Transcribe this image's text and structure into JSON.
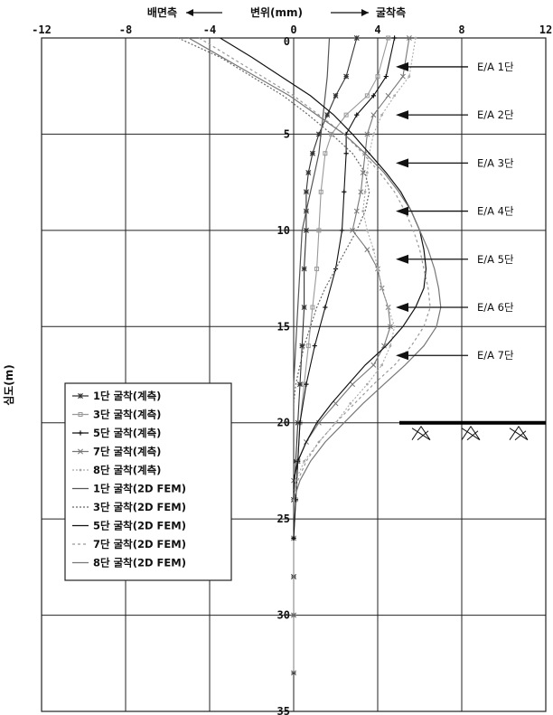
{
  "header": {
    "left_label": "배면측",
    "center_label": "변위(mm)",
    "right_label": "굴착측"
  },
  "ylabel": "심도(m)",
  "excavation_depth_m": 20,
  "anchors": [
    {
      "label": "E/A 1단",
      "depth": 1.5
    },
    {
      "label": "E/A 2단",
      "depth": 4.0
    },
    {
      "label": "E/A 3단",
      "depth": 6.5
    },
    {
      "label": "E/A 4단",
      "depth": 9.0
    },
    {
      "label": "E/A 5단",
      "depth": 11.5
    },
    {
      "label": "E/A 6단",
      "depth": 14.0
    },
    {
      "label": "E/A 7단",
      "depth": 16.5
    }
  ],
  "chart_data": {
    "type": "line",
    "xlabel": "변위(mm)",
    "ylabel": "심도(m)",
    "xlim": [
      -12,
      12
    ],
    "ylim": [
      0,
      35
    ],
    "y_inverted": true,
    "x_ticks": [
      "-12",
      "-8",
      "-4",
      "0",
      "4",
      "8",
      "12"
    ],
    "y_ticks": [
      "0",
      "5",
      "10",
      "15",
      "20",
      "25",
      "30",
      "35"
    ],
    "grid": true,
    "legend_position": "left-middle",
    "series": [
      {
        "name": "1단 굴착(계측)",
        "color": "#333333",
        "dash": "",
        "marker": "star",
        "points": [
          [
            3.0,
            0
          ],
          [
            2.5,
            2
          ],
          [
            2.0,
            3
          ],
          [
            1.6,
            4
          ],
          [
            1.2,
            5
          ],
          [
            0.9,
            6
          ],
          [
            0.7,
            7
          ],
          [
            0.6,
            8
          ],
          [
            0.6,
            9
          ],
          [
            0.6,
            10
          ],
          [
            0.5,
            12
          ],
          [
            0.5,
            14
          ],
          [
            0.4,
            16
          ],
          [
            0.3,
            18
          ],
          [
            0.2,
            20
          ],
          [
            0.1,
            22
          ],
          [
            0.0,
            24
          ],
          [
            0.0,
            26
          ],
          [
            0.0,
            28
          ],
          [
            0.0,
            30
          ],
          [
            0.0,
            33
          ]
        ]
      },
      {
        "name": "3단 굴착(계측)",
        "color": "#999999",
        "dash": "",
        "marker": "square",
        "points": [
          [
            4.5,
            0
          ],
          [
            4.0,
            2
          ],
          [
            3.5,
            3
          ],
          [
            2.5,
            4
          ],
          [
            1.8,
            5
          ],
          [
            1.5,
            6
          ],
          [
            1.3,
            8
          ],
          [
            1.2,
            10
          ],
          [
            1.1,
            12
          ],
          [
            0.9,
            14
          ],
          [
            0.7,
            16
          ],
          [
            0.5,
            18
          ],
          [
            0.3,
            20
          ],
          [
            0.2,
            22
          ],
          [
            0.1,
            24
          ],
          [
            0.0,
            26
          ],
          [
            0.0,
            30
          ],
          [
            0.0,
            33
          ]
        ]
      },
      {
        "name": "5단 굴착(계측)",
        "color": "#111111",
        "dash": "",
        "marker": "plus",
        "points": [
          [
            4.8,
            0
          ],
          [
            4.4,
            2
          ],
          [
            3.8,
            3
          ],
          [
            3.0,
            4
          ],
          [
            2.5,
            5
          ],
          [
            2.5,
            6
          ],
          [
            2.4,
            8
          ],
          [
            2.3,
            10
          ],
          [
            2.0,
            12
          ],
          [
            1.5,
            14
          ],
          [
            1.0,
            16
          ],
          [
            0.6,
            18
          ],
          [
            0.3,
            20
          ],
          [
            0.2,
            22
          ],
          [
            0.1,
            24
          ],
          [
            0.0,
            26
          ]
        ]
      },
      {
        "name": "7단 굴착(계측)",
        "color": "#777777",
        "dash": "",
        "marker": "x",
        "points": [
          [
            5.5,
            0
          ],
          [
            5.2,
            2
          ],
          [
            4.5,
            3
          ],
          [
            3.8,
            4
          ],
          [
            3.5,
            5
          ],
          [
            3.4,
            6
          ],
          [
            3.3,
            7
          ],
          [
            3.2,
            8
          ],
          [
            3.0,
            9
          ],
          [
            2.8,
            10
          ],
          [
            3.5,
            11
          ],
          [
            4.0,
            12
          ],
          [
            4.2,
            13
          ],
          [
            4.5,
            14
          ],
          [
            4.6,
            15
          ],
          [
            4.3,
            16
          ],
          [
            3.8,
            17
          ],
          [
            2.8,
            18
          ],
          [
            2.0,
            19
          ],
          [
            1.2,
            20
          ],
          [
            0.6,
            21
          ],
          [
            0.2,
            22
          ],
          [
            0.0,
            23
          ]
        ]
      },
      {
        "name": "8단 굴착(계측)",
        "color": "#aaaaaa",
        "dash": "2,2",
        "marker": "dot",
        "points": [
          [
            5.8,
            0
          ],
          [
            5.5,
            2
          ],
          [
            4.8,
            3
          ],
          [
            4.2,
            4
          ],
          [
            3.8,
            5
          ],
          [
            3.6,
            6
          ],
          [
            3.5,
            7
          ],
          [
            3.4,
            8
          ],
          [
            3.3,
            9
          ],
          [
            3.5,
            10
          ],
          [
            3.8,
            11
          ],
          [
            4.0,
            12
          ],
          [
            4.2,
            13
          ],
          [
            4.5,
            14
          ],
          [
            4.8,
            15
          ],
          [
            4.6,
            16
          ],
          [
            4.2,
            17
          ],
          [
            3.5,
            18
          ],
          [
            2.7,
            19
          ],
          [
            2.0,
            20
          ],
          [
            1.2,
            21
          ],
          [
            0.5,
            22
          ],
          [
            0.1,
            23
          ],
          [
            0.0,
            24
          ]
        ]
      },
      {
        "name": "1단 굴착(2D FEM)",
        "color": "#555555",
        "dash": "",
        "marker": "none",
        "points": [
          [
            1.7,
            0
          ],
          [
            1.6,
            2
          ],
          [
            1.5,
            3
          ],
          [
            1.4,
            4
          ],
          [
            1.3,
            5
          ],
          [
            1.2,
            6
          ],
          [
            1.0,
            7
          ],
          [
            0.8,
            8
          ],
          [
            0.6,
            9
          ],
          [
            0.4,
            10
          ],
          [
            0.3,
            12
          ],
          [
            0.2,
            14
          ],
          [
            0.1,
            16
          ],
          [
            0.0,
            18
          ],
          [
            0.0,
            20
          ]
        ]
      },
      {
        "name": "3단 굴착(2D FEM)",
        "color": "#666666",
        "dash": "2,2",
        "marker": "none",
        "points": [
          [
            -5.5,
            0
          ],
          [
            -3.5,
            1
          ],
          [
            -2.0,
            2
          ],
          [
            -0.5,
            3
          ],
          [
            0.7,
            4
          ],
          [
            1.8,
            5
          ],
          [
            2.8,
            6
          ],
          [
            3.4,
            7
          ],
          [
            3.6,
            8
          ],
          [
            3.4,
            9
          ],
          [
            3.0,
            10
          ],
          [
            2.5,
            11
          ],
          [
            2.0,
            12
          ],
          [
            1.5,
            13
          ],
          [
            1.1,
            14
          ],
          [
            0.8,
            15
          ],
          [
            0.5,
            16
          ],
          [
            0.3,
            17
          ],
          [
            0.1,
            18
          ],
          [
            0.0,
            19
          ],
          [
            0.0,
            20
          ]
        ]
      },
      {
        "name": "5단 굴착(2D FEM)",
        "color": "#111111",
        "dash": "",
        "marker": "none",
        "points": [
          [
            -3.5,
            0
          ],
          [
            -2.0,
            1
          ],
          [
            -0.6,
            2
          ],
          [
            0.8,
            3
          ],
          [
            1.9,
            4
          ],
          [
            2.8,
            5
          ],
          [
            3.6,
            6
          ],
          [
            4.4,
            7
          ],
          [
            5.1,
            8
          ],
          [
            5.6,
            9
          ],
          [
            6.0,
            10
          ],
          [
            6.2,
            11
          ],
          [
            6.3,
            12
          ],
          [
            6.2,
            13
          ],
          [
            5.8,
            14
          ],
          [
            5.2,
            15
          ],
          [
            4.4,
            16
          ],
          [
            3.4,
            17
          ],
          [
            2.6,
            18
          ],
          [
            1.8,
            19
          ],
          [
            1.1,
            20
          ],
          [
            0.6,
            21
          ],
          [
            0.2,
            22
          ],
          [
            0.0,
            23
          ],
          [
            0.0,
            24
          ]
        ]
      },
      {
        "name": "7단 굴착(2D FEM)",
        "color": "#999999",
        "dash": "3,3",
        "marker": "none",
        "points": [
          [
            -4.5,
            0
          ],
          [
            -3.0,
            1
          ],
          [
            -1.5,
            2
          ],
          [
            0.0,
            3
          ],
          [
            1.2,
            4
          ],
          [
            2.4,
            5
          ],
          [
            3.3,
            6
          ],
          [
            4.1,
            7
          ],
          [
            4.8,
            8
          ],
          [
            5.3,
            9
          ],
          [
            5.7,
            10
          ],
          [
            6.0,
            11
          ],
          [
            6.2,
            12
          ],
          [
            6.4,
            13
          ],
          [
            6.5,
            14
          ],
          [
            6.2,
            15
          ],
          [
            5.6,
            16
          ],
          [
            4.8,
            17
          ],
          [
            3.8,
            18
          ],
          [
            2.9,
            19
          ],
          [
            2.0,
            20
          ],
          [
            1.2,
            21
          ],
          [
            0.6,
            22
          ],
          [
            0.2,
            23
          ],
          [
            0.0,
            24
          ]
        ]
      },
      {
        "name": "8단 굴착(2D FEM)",
        "color": "#777777",
        "dash": "",
        "marker": "none",
        "points": [
          [
            -5.0,
            0
          ],
          [
            -3.4,
            1
          ],
          [
            -1.8,
            2
          ],
          [
            -0.2,
            3
          ],
          [
            1.1,
            4
          ],
          [
            2.4,
            5
          ],
          [
            3.4,
            6
          ],
          [
            4.3,
            7
          ],
          [
            5.0,
            8
          ],
          [
            5.6,
            9
          ],
          [
            6.0,
            10
          ],
          [
            6.4,
            11
          ],
          [
            6.7,
            12
          ],
          [
            6.9,
            13
          ],
          [
            7.0,
            14
          ],
          [
            6.8,
            15
          ],
          [
            6.2,
            16
          ],
          [
            5.3,
            17
          ],
          [
            4.3,
            18
          ],
          [
            3.3,
            19
          ],
          [
            2.4,
            20
          ],
          [
            1.5,
            21
          ],
          [
            0.8,
            22
          ],
          [
            0.3,
            23
          ],
          [
            0.0,
            24
          ]
        ]
      }
    ]
  }
}
